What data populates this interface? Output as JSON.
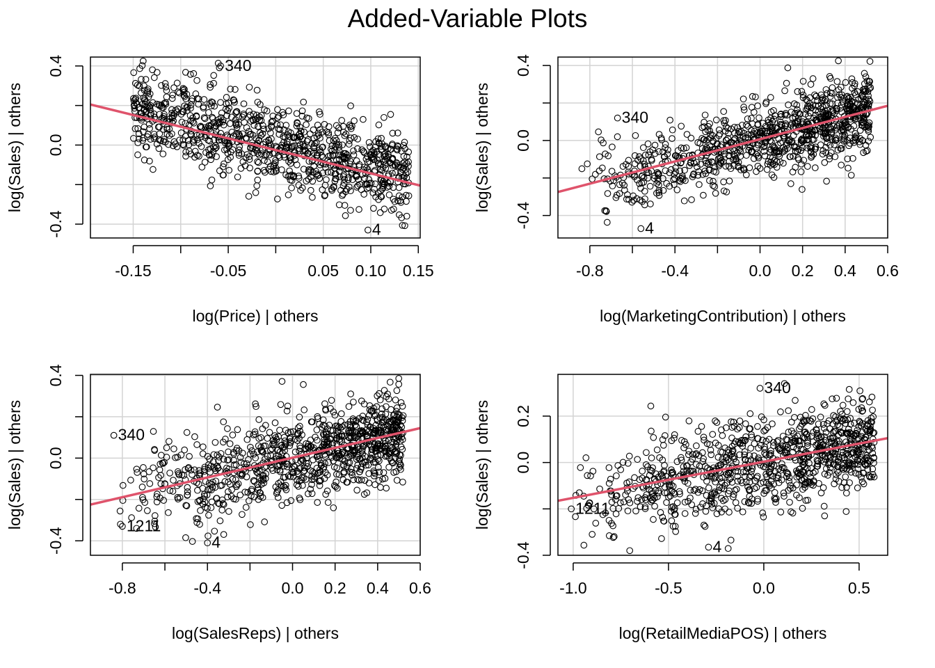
{
  "title": "Added-Variable Plots",
  "colors": {
    "fit_line": "#DF536B",
    "grid": "#D3D3D3",
    "point": "#000000"
  },
  "chart_data": [
    {
      "type": "scatter",
      "xlabel": "log(Price) | others",
      "ylabel": "log(Sales)  | others",
      "xlim": [
        -0.195,
        0.152
      ],
      "ylim": [
        -0.47,
        0.445
      ],
      "xticks": [
        -0.15,
        -0.1,
        -0.05,
        0.0,
        0.05,
        0.1,
        0.15
      ],
      "xtick_labels": [
        "-0.15",
        "",
        "-0.05",
        "",
        "0.05",
        "0.10",
        "0.15"
      ],
      "yticks": [
        -0.4,
        -0.2,
        0.0,
        0.2,
        0.4
      ],
      "ytick_labels": [
        "-0.4",
        "",
        "0.0",
        "",
        "0.4"
      ],
      "fit": {
        "x1": -0.195,
        "y1": 0.205,
        "x2": 0.152,
        "y2": -0.205
      },
      "cloud": {
        "x_min": -0.15,
        "x_max": 0.14,
        "slope": -1.18,
        "intercept": 0.0,
        "noise": 0.11,
        "n": 950,
        "x_skew": 1.0
      },
      "labeled_points": [
        {
          "id": "340",
          "x": -0.058,
          "y": 0.4
        },
        {
          "id": "4",
          "x": 0.097,
          "y": -0.43
        }
      ]
    },
    {
      "type": "scatter",
      "xlabel": "log(MarketingContribution) | others",
      "ylabel": "log(Sales)  | others",
      "xlim": [
        -0.95,
        0.6
      ],
      "ylim": [
        -0.52,
        0.445
      ],
      "xticks": [
        -0.8,
        -0.6,
        -0.4,
        -0.2,
        0.0,
        0.2,
        0.4,
        0.6
      ],
      "xtick_labels": [
        "-0.8",
        "",
        "-0.4",
        "",
        "0.0",
        "0.2",
        "0.4",
        "0.6"
      ],
      "yticks": [
        -0.4,
        -0.2,
        0.0,
        0.2,
        0.4
      ],
      "ytick_labels": [
        "-0.4",
        "",
        "0.0",
        "",
        "0.4"
      ],
      "fit": {
        "x1": -0.95,
        "y1": -0.275,
        "x2": 0.6,
        "y2": 0.185
      },
      "cloud": {
        "x_min": -0.85,
        "x_max": 0.52,
        "slope": 0.3,
        "intercept": 0.0,
        "noise": 0.1,
        "n": 950,
        "x_skew": 0.55
      },
      "labeled_points": [
        {
          "id": "340",
          "x": -0.67,
          "y": 0.12
        },
        {
          "id": "4",
          "x": -0.56,
          "y": -0.47
        }
      ]
    },
    {
      "type": "scatter",
      "xlabel": "log(SalesReps) | others",
      "ylabel": "log(Sales)  | others",
      "xlim": [
        -0.95,
        0.6
      ],
      "ylim": [
        -0.47,
        0.405
      ],
      "xticks": [
        -0.8,
        -0.6,
        -0.4,
        -0.2,
        0.0,
        0.2,
        0.4,
        0.6
      ],
      "xtick_labels": [
        "-0.8",
        "",
        "-0.4",
        "",
        "0.0",
        "0.2",
        "0.4",
        "0.6"
      ],
      "yticks": [
        -0.4,
        -0.2,
        0.0,
        0.2,
        0.4
      ],
      "ytick_labels": [
        "-0.4",
        "",
        "0.0",
        "",
        "0.4"
      ],
      "fit": {
        "x1": -0.95,
        "y1": -0.225,
        "x2": 0.6,
        "y2": 0.145
      },
      "cloud": {
        "x_min": -0.85,
        "x_max": 0.52,
        "slope": 0.24,
        "intercept": 0.0,
        "noise": 0.11,
        "n": 950,
        "x_skew": 0.55
      },
      "labeled_points": [
        {
          "id": "340",
          "x": -0.84,
          "y": 0.11
        },
        {
          "id": "4",
          "x": -0.4,
          "y": -0.41
        },
        {
          "id": "1211",
          "x": -0.8,
          "y": -0.33
        }
      ]
    },
    {
      "type": "scatter",
      "xlabel": "log(RetailMediaPOS) | others",
      "ylabel": "log(Sales)  | others",
      "xlim": [
        -1.08,
        0.65
      ],
      "ylim": [
        -0.4,
        0.38
      ],
      "xticks": [
        -1.0,
        -0.5,
        0.0,
        0.5
      ],
      "xtick_labels": [
        "-1.0",
        "-0.5",
        "0.0",
        "0.5"
      ],
      "yticks": [
        -0.4,
        -0.2,
        0.0,
        0.2
      ],
      "ytick_labels": [
        "-0.4",
        "",
        "0.0",
        "0.2"
      ],
      "fit": {
        "x1": -1.08,
        "y1": -0.165,
        "x2": 0.65,
        "y2": 0.105
      },
      "cloud": {
        "x_min": -1.02,
        "x_max": 0.58,
        "slope": 0.156,
        "intercept": 0.0,
        "noise": 0.1,
        "n": 950,
        "x_skew": 0.6
      },
      "labeled_points": [
        {
          "id": "340",
          "x": -0.02,
          "y": 0.32
        },
        {
          "id": "4",
          "x": -0.29,
          "y": -0.365
        },
        {
          "id": "1211",
          "x": -1.01,
          "y": -0.2
        }
      ]
    }
  ]
}
